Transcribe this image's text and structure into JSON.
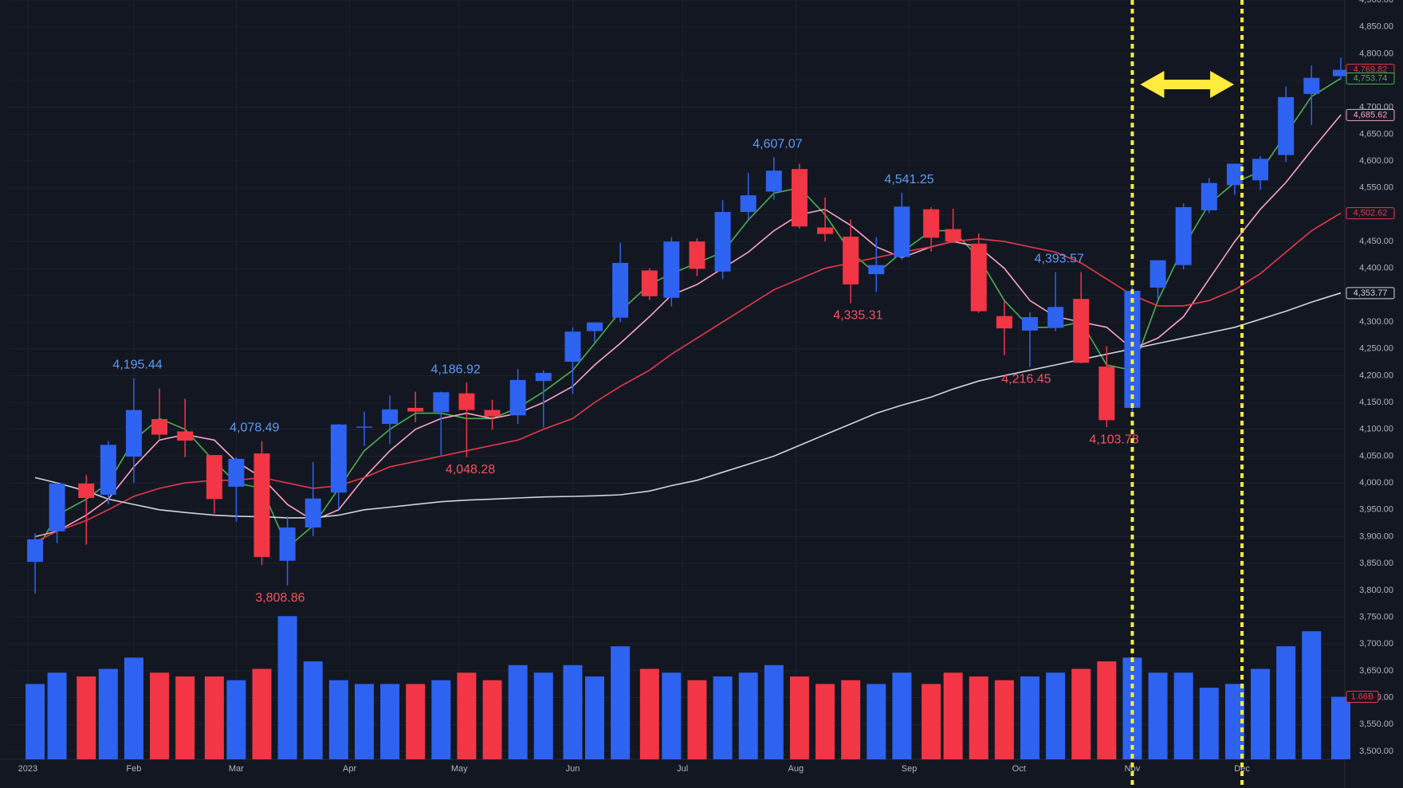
{
  "chart_data": {
    "type": "candlestick",
    "x": [
      5,
      11,
      19,
      25,
      32,
      39,
      46,
      54,
      60,
      67,
      74,
      81,
      88,
      95,
      102,
      109,
      116,
      123,
      130,
      137,
      144,
      152,
      158,
      165,
      173,
      179,
      186,
      193,
      200,
      207,
      214,
      221,
      228,
      235,
      242,
      250,
      256,
      263,
      270,
      277,
      284,
      291,
      298,
      305,
      312,
      319,
      326,
      333,
      340,
      347,
      354,
      362
    ],
    "open": [
      3853,
      3910,
      3999,
      3978,
      4049,
      4119,
      4096,
      4052,
      3993,
      4055,
      3855,
      3917,
      3982,
      4103,
      4110,
      4140,
      4132,
      4167,
      4136,
      4126,
      4190,
      4226,
      4283,
      4308,
      4396,
      4345,
      4450,
      4394,
      4505,
      4543,
      4585,
      4476,
      4459,
      4389,
      4421,
      4510,
      4473,
      4446,
      4311,
      4284,
      4289,
      4343,
      4217,
      4140,
      4364,
      4406,
      4508,
      4555,
      4564,
      4611,
      4725,
      4758
    ],
    "high": [
      3906,
      4000,
      4015,
      4078,
      4195,
      4176,
      4157,
      4052,
      4048,
      4078,
      3938,
      4039,
      4110,
      4133,
      4163,
      4170,
      4170,
      4187,
      4155,
      4212,
      4210,
      4290,
      4299,
      4448,
      4400,
      4458,
      4456,
      4527,
      4578,
      4607,
      4595,
      4532,
      4491,
      4458,
      4541,
      4514,
      4511,
      4465,
      4338,
      4318,
      4393,
      4393,
      4255,
      4366,
      4415,
      4521,
      4568,
      4595,
      4609,
      4739,
      4778,
      4793
    ],
    "low": [
      3794,
      3888,
      3885,
      3960,
      4000,
      4080,
      4048,
      3943,
      3928,
      3847,
      3809,
      3901,
      3951,
      4069,
      4073,
      4113,
      4049,
      4048,
      4099,
      4110,
      4103,
      4166,
      4262,
      4300,
      4341,
      4329,
      4385,
      4380,
      4491,
      4528,
      4474,
      4450,
      4335,
      4356,
      4416,
      4431,
      4447,
      4317,
      4238,
      4216,
      4283,
      4223,
      4104,
      4127,
      4343,
      4398,
      4503,
      4537,
      4546,
      4598,
      4667,
      4751
    ],
    "close": [
      3895,
      3999,
      3972,
      4071,
      4136,
      4090,
      4079,
      3970,
      4045,
      3862,
      3917,
      3971,
      4109,
      4105,
      4137,
      4133,
      4169,
      4136,
      4124,
      4192,
      4205,
      4282,
      4299,
      4410,
      4348,
      4450,
      4399,
      4505,
      4536,
      4582,
      4478,
      4464,
      4370,
      4406,
      4515,
      4457,
      4450,
      4320,
      4288,
      4309,
      4328,
      4224,
      4117,
      4358,
      4415,
      4514,
      4559,
      4595,
      4604,
      4719,
      4755,
      4770
    ],
    "up_color": "#2e62f0",
    "down_color": "#f23645",
    "xlim": [
      -2.2,
      363.1
    ],
    "xticks": [
      {
        "value": 3,
        "label": "2023"
      },
      {
        "value": 32,
        "label": "Feb"
      },
      {
        "value": 60,
        "label": "Mar"
      },
      {
        "value": 91,
        "label": "Apr"
      },
      {
        "value": 121,
        "label": "May"
      },
      {
        "value": 152,
        "label": "Jun"
      },
      {
        "value": 182,
        "label": "Jul"
      },
      {
        "value": 213,
        "label": "Aug"
      },
      {
        "value": 244,
        "label": "Sep"
      },
      {
        "value": 274,
        "label": "Oct"
      },
      {
        "value": 305,
        "label": "Nov"
      },
      {
        "value": 335,
        "label": "Dec"
      }
    ],
    "ylim": [
      3485,
      4900
    ],
    "yticks": [
      {
        "value": 3500,
        "label": "3,500.00"
      },
      {
        "value": 3550,
        "label": "3,550.00"
      },
      {
        "value": 3600,
        "label": "3,600.00"
      },
      {
        "value": 3650,
        "label": "3,650.00"
      },
      {
        "value": 3700,
        "label": "3,700.00"
      },
      {
        "value": 3750,
        "label": "3,750.00"
      },
      {
        "value": 3800,
        "label": "3,800.00"
      },
      {
        "value": 3850,
        "label": "3,850.00"
      },
      {
        "value": 3900,
        "label": "3,900.00"
      },
      {
        "value": 3950,
        "label": "3,950.00"
      },
      {
        "value": 4000,
        "label": "4,000.00"
      },
      {
        "value": 4050,
        "label": "4,050.00"
      },
      {
        "value": 4100,
        "label": "4,100.00"
      },
      {
        "value": 4150,
        "label": "4,150.00"
      },
      {
        "value": 4200,
        "label": "4,200.00"
      },
      {
        "value": 4250,
        "label": "4,250.00"
      },
      {
        "value": 4300,
        "label": "4,300.00"
      },
      {
        "value": 4350,
        "label": "4,350.00"
      },
      {
        "value": 4400,
        "label": "4,400.00"
      },
      {
        "value": 4450,
        "label": "4,450.00"
      },
      {
        "value": 4500,
        "label": "4,500.00"
      },
      {
        "value": 4550,
        "label": "4,550.00"
      },
      {
        "value": 4600,
        "label": "4,600.00"
      },
      {
        "value": 4650,
        "label": "4,650.00"
      },
      {
        "value": 4700,
        "label": "4,700.00"
      },
      {
        "value": 4750,
        "label": "4,750.00"
      },
      {
        "value": 4800,
        "label": "4,800.00"
      },
      {
        "value": 4850,
        "label": "4,850.00"
      },
      {
        "value": 4900,
        "label": "4,900.00"
      }
    ],
    "grid": true,
    "lines": [
      {
        "color": "#4caf50",
        "values": [
          3870,
          3940,
          3970,
          4000,
          4080,
          4120,
          4100,
          4040,
          4000,
          3990,
          3880,
          3920,
          3990,
          4060,
          4100,
          4130,
          4130,
          4120,
          4120,
          4140,
          4170,
          4210,
          4260,
          4320,
          4370,
          4390,
          4410,
          4430,
          4490,
          4540,
          4550,
          4500,
          4430,
          4390,
          4430,
          4470,
          4470,
          4420,
          4340,
          4290,
          4290,
          4300,
          4220,
          4210,
          4340,
          4440,
          4520,
          4560,
          4580,
          4650,
          4720,
          4754
        ]
      },
      {
        "color": "#f8a5c2",
        "values": [
          3900,
          3910,
          3940,
          3970,
          4030,
          4080,
          4090,
          4080,
          4040,
          4010,
          3960,
          3930,
          3950,
          4010,
          4060,
          4100,
          4120,
          4130,
          4120,
          4130,
          4150,
          4180,
          4220,
          4260,
          4310,
          4350,
          4370,
          4400,
          4430,
          4470,
          4500,
          4510,
          4480,
          4440,
          4420,
          4440,
          4450,
          4440,
          4400,
          4340,
          4310,
          4300,
          4290,
          4250,
          4270,
          4310,
          4380,
          4450,
          4510,
          4560,
          4620,
          4686
        ]
      },
      {
        "color": "#e8394a",
        "values": [
          3890,
          3910,
          3930,
          3950,
          3975,
          3990,
          4000,
          4005,
          4005,
          4010,
          4000,
          3990,
          3995,
          4010,
          4030,
          4040,
          4050,
          4060,
          4070,
          4080,
          4100,
          4120,
          4150,
          4180,
          4210,
          4240,
          4270,
          4300,
          4330,
          4360,
          4380,
          4400,
          4410,
          4420,
          4430,
          4440,
          4450,
          4455,
          4450,
          4440,
          4430,
          4410,
          4380,
          4350,
          4330,
          4330,
          4340,
          4360,
          4390,
          4430,
          4470,
          4503
        ]
      },
      {
        "color": "#d1d4dc",
        "values": [
          4010,
          4000,
          3985,
          3970,
          3960,
          3950,
          3945,
          3940,
          3938,
          3937,
          3935,
          3935,
          3940,
          3950,
          3955,
          3960,
          3965,
          3968,
          3970,
          3972,
          3974,
          3975,
          3976,
          3978,
          3985,
          3995,
          4005,
          4020,
          4035,
          4050,
          4070,
          4090,
          4110,
          4130,
          4145,
          4160,
          4175,
          4190,
          4200,
          4210,
          4220,
          4230,
          4240,
          4250,
          4260,
          4270,
          4280,
          4290,
          4305,
          4320,
          4337,
          4354
        ]
      }
    ],
    "volume": {
      "values": [
        2.0,
        2.3,
        2.2,
        2.4,
        2.7,
        2.3,
        2.2,
        2.2,
        2.1,
        2.4,
        3.8,
        2.6,
        2.1,
        2.0,
        2.0,
        2.0,
        2.1,
        2.3,
        2.1,
        2.5,
        2.3,
        2.5,
        2.2,
        3.0,
        2.4,
        2.3,
        2.1,
        2.2,
        2.3,
        2.5,
        2.2,
        2.0,
        2.1,
        2.0,
        2.3,
        2.0,
        2.3,
        2.2,
        2.1,
        2.2,
        2.3,
        2.4,
        2.6,
        2.7,
        2.3,
        2.3,
        1.9,
        2.0,
        2.4,
        3.0,
        3.4,
        1.66
      ],
      "y2lim": [
        0,
        4.8
      ],
      "tag": {
        "value": 1.66,
        "label": "1.66B",
        "color": "#f23645"
      }
    },
    "annotations": [
      {
        "x": 33,
        "value": 4195.44,
        "label": "4,195.44",
        "color": "#5b9cf6",
        "position": "above"
      },
      {
        "x": 65,
        "value": 4078.49,
        "label": "4,078.49",
        "color": "#5b9cf6",
        "position": "above"
      },
      {
        "x": 72,
        "value": 3808.86,
        "label": "3,808.86",
        "color": "#f7525f",
        "position": "below"
      },
      {
        "x": 120,
        "value": 4186.92,
        "label": "4,186.92",
        "color": "#5b9cf6",
        "position": "above"
      },
      {
        "x": 124,
        "value": 4048.28,
        "label": "4,048.28",
        "color": "#f7525f",
        "position": "below"
      },
      {
        "x": 208,
        "value": 4607.07,
        "label": "4,607.07",
        "color": "#5b9cf6",
        "position": "above"
      },
      {
        "x": 230,
        "value": 4335.31,
        "label": "4,335.31",
        "color": "#f7525f",
        "position": "below"
      },
      {
        "x": 244,
        "value": 4541.25,
        "label": "4,541.25",
        "color": "#5b9cf6",
        "position": "above"
      },
      {
        "x": 276,
        "value": 4216.45,
        "label": "4,216.45",
        "color": "#f7525f",
        "position": "below"
      },
      {
        "x": 285,
        "value": 4393.57,
        "label": "4,393.57",
        "color": "#5b9cf6",
        "position": "above"
      },
      {
        "x": 300,
        "value": 4103.78,
        "label": "4,103.78",
        "color": "#f7525f",
        "position": "below"
      }
    ],
    "price_tags": [
      {
        "value": 4769.82,
        "label": "4,769.82",
        "color": "#f23645"
      },
      {
        "value": 4753.74,
        "label": "4,753.74",
        "color": "#4caf50"
      },
      {
        "value": 4685.62,
        "label": "4,685.62",
        "color": "#f8a5c2"
      },
      {
        "value": 4502.62,
        "label": "4,502.62",
        "color": "#e8394a"
      },
      {
        "value": 4353.77,
        "label": "4,353.77",
        "color": "#d1d4dc"
      }
    ],
    "vlines": [
      305,
      335
    ],
    "vline_color": "#ffeb3b"
  }
}
